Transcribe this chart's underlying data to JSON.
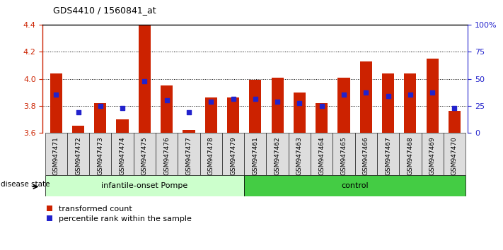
{
  "title": "GDS4410 / 1560841_at",
  "samples": [
    "GSM947471",
    "GSM947472",
    "GSM947473",
    "GSM947474",
    "GSM947475",
    "GSM947476",
    "GSM947477",
    "GSM947478",
    "GSM947479",
    "GSM947461",
    "GSM947462",
    "GSM947463",
    "GSM947464",
    "GSM947465",
    "GSM947466",
    "GSM947467",
    "GSM947468",
    "GSM947469",
    "GSM947470"
  ],
  "red_values": [
    4.04,
    3.65,
    3.82,
    3.7,
    4.4,
    3.95,
    3.62,
    3.86,
    3.86,
    3.99,
    4.01,
    3.9,
    3.82,
    4.01,
    4.13,
    4.04,
    4.04,
    4.15,
    3.76
  ],
  "blue_values": [
    3.88,
    3.75,
    3.8,
    3.78,
    3.98,
    3.84,
    3.75,
    3.83,
    3.85,
    3.85,
    3.83,
    3.82,
    3.8,
    3.88,
    3.9,
    3.87,
    3.88,
    3.9,
    3.78
  ],
  "group1_count": 9,
  "group1_label": "infantile-onset Pompe",
  "group2_label": "control",
  "ymin": 3.6,
  "ymax": 4.4,
  "yticks": [
    3.6,
    3.8,
    4.0,
    4.2,
    4.4
  ],
  "right_yticks": [
    0,
    25,
    50,
    75,
    100
  ],
  "right_yticklabels": [
    "0",
    "25",
    "50",
    "75",
    "100%"
  ],
  "bar_color": "#cc2200",
  "blue_color": "#2222cc",
  "group1_bg": "#ccffcc",
  "group2_bg": "#44cc44",
  "left_axis_color": "#cc2200",
  "right_axis_color": "#2222cc",
  "bar_width": 0.55,
  "disease_state_label": "disease state",
  "tick_bg_color": "#dddddd"
}
